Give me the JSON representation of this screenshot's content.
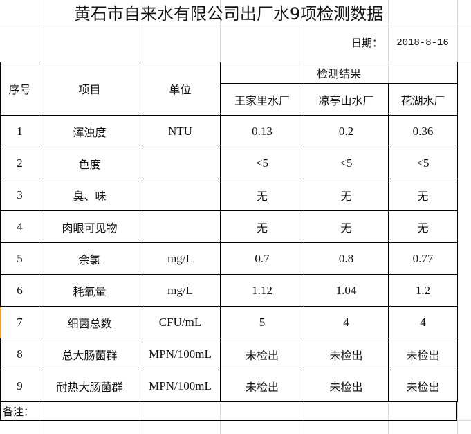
{
  "title": "黄石市自来水有限公司出厂水9项检测数据",
  "date_label": "日期：",
  "date_value": "2018-8-16",
  "headers": {
    "seq": "序号",
    "item": "项目",
    "unit": "单位",
    "result": "检测结果",
    "plants": [
      "王家里水厂",
      "凉亭山水厂",
      "花湖水厂"
    ]
  },
  "rows": [
    {
      "seq": "1",
      "item": "浑浊度",
      "unit": "NTU",
      "values": [
        "0.13",
        "0.2",
        "0.36"
      ]
    },
    {
      "seq": "2",
      "item": "色度",
      "unit": "",
      "values": [
        "<5",
        "<5",
        "<5"
      ]
    },
    {
      "seq": "3",
      "item": "臭、味",
      "unit": "",
      "values": [
        "无",
        "无",
        "无"
      ]
    },
    {
      "seq": "4",
      "item": "肉眼可见物",
      "unit": "",
      "values": [
        "无",
        "无",
        "无"
      ]
    },
    {
      "seq": "5",
      "item": "余氯",
      "unit": "mg/L",
      "values": [
        "0.7",
        "0.8",
        "0.77"
      ]
    },
    {
      "seq": "6",
      "item": "耗氧量",
      "unit": "mg/L",
      "values": [
        "1.12",
        "1.04",
        "1.2"
      ]
    },
    {
      "seq": "7",
      "item": "细菌总数",
      "unit": "CFU/mL",
      "values": [
        "5",
        "4",
        "4"
      ]
    },
    {
      "seq": "8",
      "item": "总大肠菌群",
      "unit": "MPN/100mL",
      "values": [
        "未检出",
        "未检出",
        "未检出"
      ]
    },
    {
      "seq": "9",
      "item": "耐热大肠菌群",
      "unit": "MPN/100mL",
      "values": [
        "未检出",
        "未检出",
        "未检出"
      ]
    }
  ],
  "remark": "备注："
}
